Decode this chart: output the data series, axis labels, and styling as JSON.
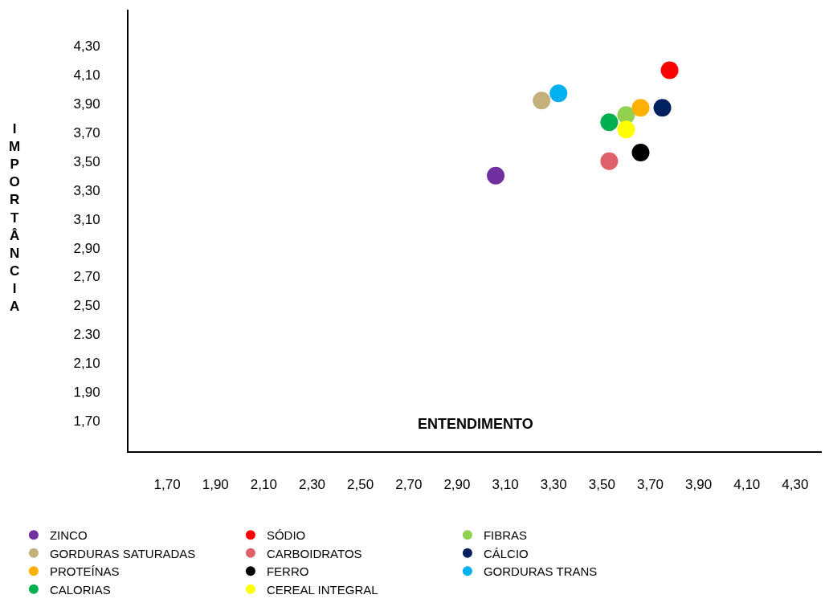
{
  "chart_data": {
    "type": "scatter",
    "xlabel": "ENTENDIMENTO",
    "ylabel": "IMPORTÂNCIA",
    "xlim": [
      1.54,
      4.41
    ],
    "ylim": [
      1.49,
      4.55
    ],
    "xticks": [
      {
        "value": 1.7,
        "label": "1,70"
      },
      {
        "value": 1.9,
        "label": "1,90"
      },
      {
        "value": 2.1,
        "label": "2,10"
      },
      {
        "value": 2.3,
        "label": "2,30"
      },
      {
        "value": 2.5,
        "label": "2,50"
      },
      {
        "value": 2.7,
        "label": "2,70"
      },
      {
        "value": 2.9,
        "label": "2,90"
      },
      {
        "value": 3.1,
        "label": "3,10"
      },
      {
        "value": 3.3,
        "label": "3,30"
      },
      {
        "value": 3.5,
        "label": "3,50"
      },
      {
        "value": 3.7,
        "label": "3,70"
      },
      {
        "value": 3.9,
        "label": "3,90"
      },
      {
        "value": 4.1,
        "label": "4,10"
      },
      {
        "value": 4.3,
        "label": "4,30"
      }
    ],
    "yticks": [
      {
        "value": 1.7,
        "label": "1,70"
      },
      {
        "value": 1.9,
        "label": "1,90"
      },
      {
        "value": 2.1,
        "label": "2,10"
      },
      {
        "value": 2.3,
        "label": "2.30"
      },
      {
        "value": 2.5,
        "label": "2,50"
      },
      {
        "value": 2.7,
        "label": "2,70"
      },
      {
        "value": 2.9,
        "label": "2,90"
      },
      {
        "value": 3.1,
        "label": "3,10"
      },
      {
        "value": 3.3,
        "label": "3,30"
      },
      {
        "value": 3.5,
        "label": "3,50"
      },
      {
        "value": 3.7,
        "label": "3,70"
      },
      {
        "value": 3.9,
        "label": "3,90"
      },
      {
        "value": 4.1,
        "label": "4,10"
      },
      {
        "value": 4.3,
        "label": "4,30"
      }
    ],
    "legend": "bottom",
    "marker": "circle",
    "series": [
      {
        "name": "ZINCO",
        "color": "#7030a0",
        "x": [
          3.06
        ],
        "values": [
          3.4
        ]
      },
      {
        "name": "SÓDIO",
        "color": "#ff0000",
        "x": [
          3.78
        ],
        "values": [
          4.13
        ]
      },
      {
        "name": "FIBRAS",
        "color": "#92d050",
        "x": [
          3.6
        ],
        "values": [
          3.82
        ]
      },
      {
        "name": "GORDURAS SATURADAS",
        "color": "#c4b07b",
        "x": [
          3.25
        ],
        "values": [
          3.92
        ]
      },
      {
        "name": "CARBOIDRATOS",
        "color": "#e0606a",
        "x": [
          3.53
        ],
        "values": [
          3.5
        ]
      },
      {
        "name": "CÁLCIO",
        "color": "#002060",
        "x": [
          3.75
        ],
        "values": [
          3.87
        ]
      },
      {
        "name": "PROTEÍNAS",
        "color": "#ffb000",
        "x": [
          3.66
        ],
        "values": [
          3.87
        ]
      },
      {
        "name": "FERRO",
        "color": "#000000",
        "x": [
          3.66
        ],
        "values": [
          3.56
        ]
      },
      {
        "name": "GORDURAS TRANS",
        "color": "#00b0f0",
        "x": [
          3.32
        ],
        "values": [
          3.97
        ]
      },
      {
        "name": "CALORIAS",
        "color": "#00b050",
        "x": [
          3.53
        ],
        "values": [
          3.77
        ]
      },
      {
        "name": "CEREAL INTEGRAL",
        "color": "#ffff00",
        "x": [
          3.6
        ],
        "values": [
          3.72
        ]
      }
    ]
  }
}
